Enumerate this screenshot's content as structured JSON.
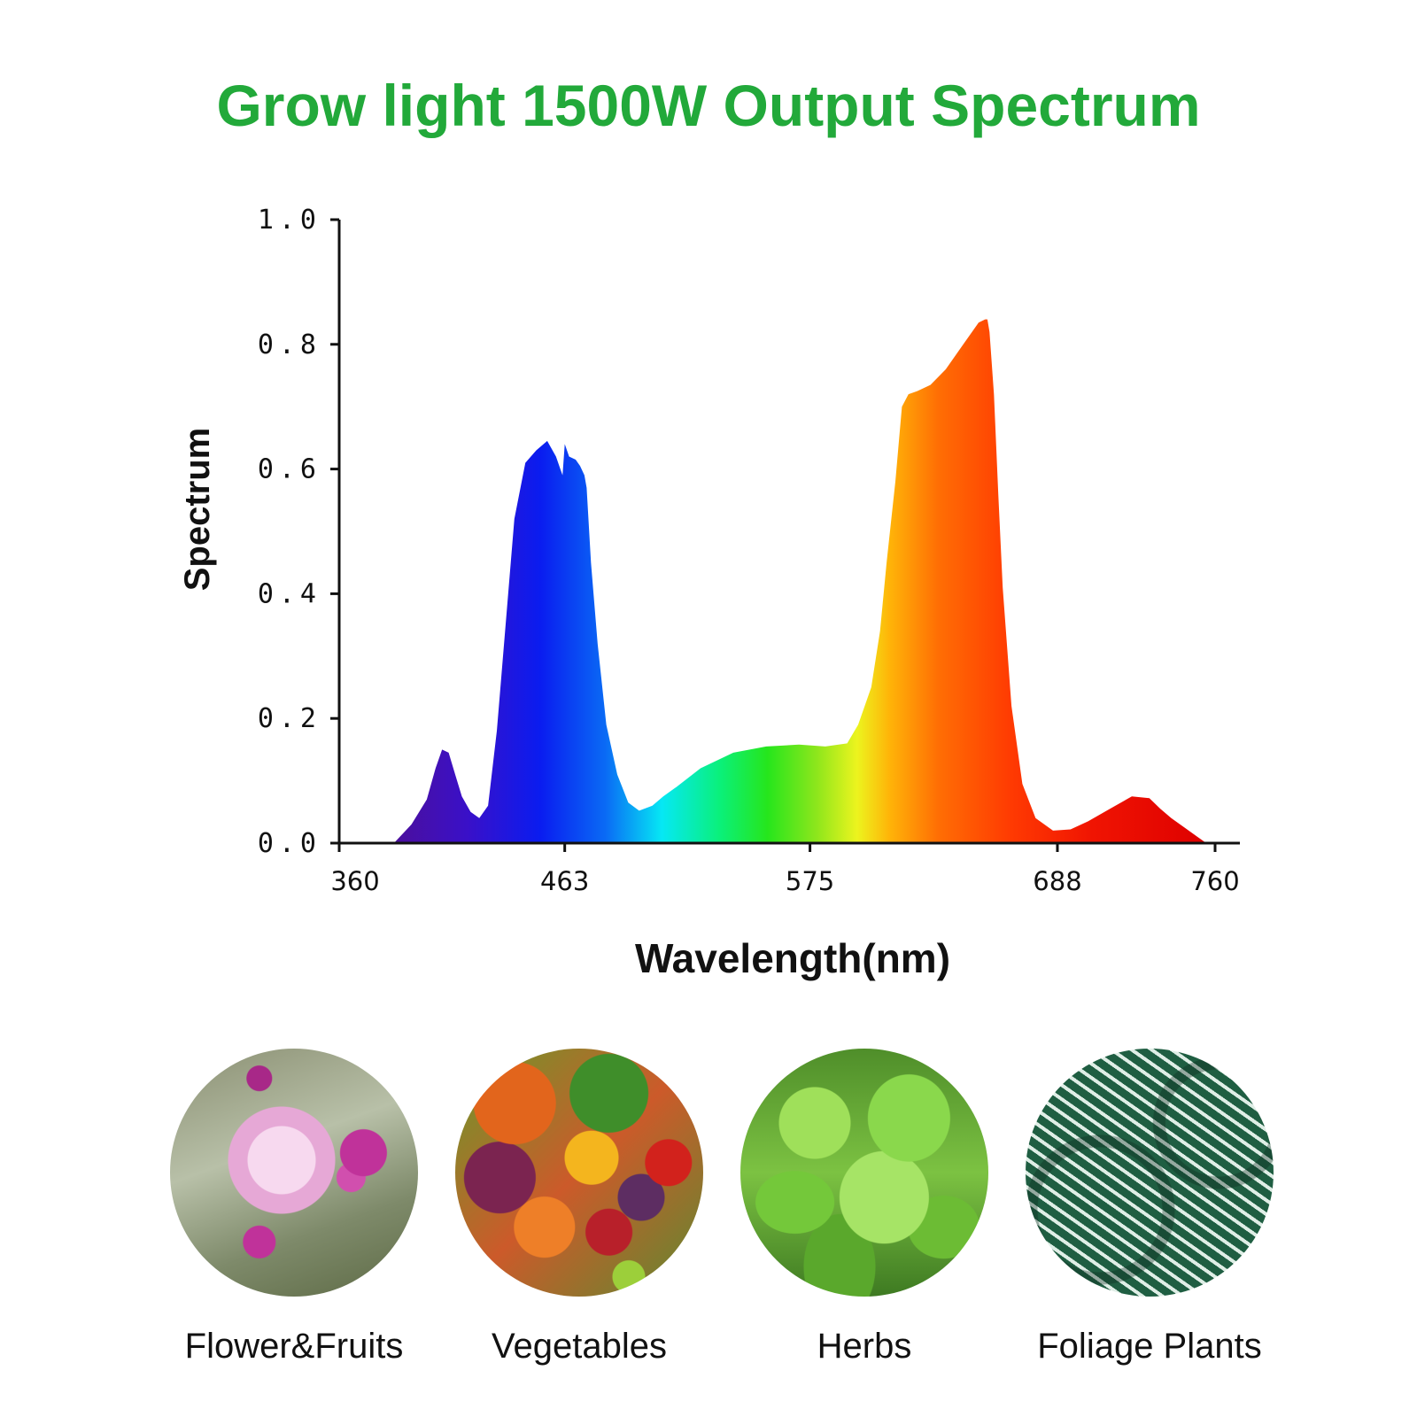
{
  "chart_data": {
    "type": "area",
    "title": "Grow light 1500W Output Spectrum",
    "xlabel": "Wavelength(nm)",
    "ylabel": "Spectrum",
    "xlim": [
      360,
      760
    ],
    "ylim": [
      0,
      1.0
    ],
    "x_ticks": [
      360,
      463,
      575,
      688,
      760
    ],
    "y_ticks": [
      "0.0",
      "0.2",
      "0.4",
      "0.6",
      "0.8",
      "1.0"
    ],
    "grid": false,
    "legend": "none",
    "fill": "visible-spectrum gradient",
    "series": [
      {
        "x": [
          385,
          393,
          400,
          404,
          407,
          410,
          413,
          416,
          420,
          424,
          428,
          432,
          436,
          440,
          445,
          450,
          455,
          459,
          461,
          462,
          463,
          465,
          468,
          470,
          472,
          473,
          475,
          478,
          482,
          487,
          492,
          497,
          503,
          508,
          514,
          525,
          540,
          555,
          570,
          582,
          592,
          597,
          603,
          607,
          610,
          614,
          617,
          620,
          624,
          630,
          637,
          645,
          652,
          655,
          656,
          657,
          659,
          661,
          663,
          667,
          672,
          678,
          686,
          694,
          702,
          712,
          722,
          730,
          735,
          740,
          746,
          752,
          756
        ],
        "y": [
          0.0,
          0.03,
          0.07,
          0.12,
          0.15,
          0.145,
          0.11,
          0.075,
          0.05,
          0.04,
          0.06,
          0.18,
          0.35,
          0.52,
          0.61,
          0.63,
          0.645,
          0.62,
          0.6,
          0.59,
          0.64,
          0.62,
          0.615,
          0.605,
          0.59,
          0.57,
          0.45,
          0.32,
          0.19,
          0.11,
          0.065,
          0.052,
          0.06,
          0.075,
          0.09,
          0.12,
          0.145,
          0.155,
          0.158,
          0.155,
          0.16,
          0.19,
          0.25,
          0.34,
          0.45,
          0.58,
          0.7,
          0.72,
          0.725,
          0.735,
          0.76,
          0.8,
          0.835,
          0.84,
          0.84,
          0.82,
          0.72,
          0.56,
          0.41,
          0.22,
          0.095,
          0.04,
          0.02,
          0.022,
          0.035,
          0.055,
          0.075,
          0.072,
          0.055,
          0.04,
          0.025,
          0.01,
          0.0
        ]
      }
    ]
  },
  "gallery": {
    "items": [
      {
        "label": "Flower&Fruits",
        "photo": "flowers-photo"
      },
      {
        "label": "Vegetables",
        "photo": "vegetables-photo"
      },
      {
        "label": "Herbs",
        "photo": "herbs-photo"
      },
      {
        "label": "Foliage Plants",
        "photo": "foliage-photo"
      }
    ]
  }
}
